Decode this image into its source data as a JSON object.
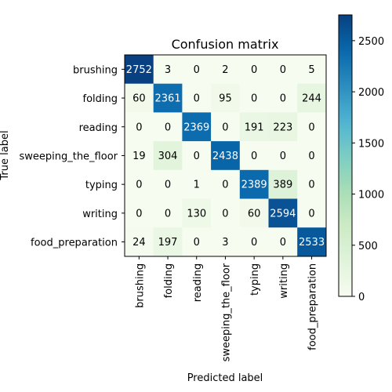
{
  "chart_data": {
    "type": "heatmap",
    "title": "Confusion matrix",
    "xlabel": "Predicted label",
    "ylabel": "True label",
    "x_categories": [
      "brushing",
      "folding",
      "reading",
      "sweeping_the_floor",
      "typing",
      "writing",
      "food_preparation"
    ],
    "y_categories": [
      "brushing",
      "folding",
      "reading",
      "sweeping_the_floor",
      "typing",
      "writing",
      "food_preparation"
    ],
    "matrix": [
      [
        2752,
        3,
        0,
        2,
        0,
        0,
        5
      ],
      [
        60,
        2361,
        0,
        95,
        0,
        0,
        244
      ],
      [
        0,
        0,
        2369,
        0,
        191,
        223,
        0
      ],
      [
        19,
        304,
        0,
        2438,
        0,
        0,
        0
      ],
      [
        0,
        0,
        1,
        0,
        2389,
        389,
        0
      ],
      [
        0,
        0,
        130,
        0,
        60,
        2594,
        0
      ],
      [
        24,
        197,
        0,
        3,
        0,
        0,
        2533
      ]
    ],
    "colorbar": {
      "colormap": "GnBu",
      "vmin": 0,
      "vmax": 2752,
      "ticks": [
        0,
        500,
        1000,
        1500,
        2000,
        2500
      ]
    }
  }
}
